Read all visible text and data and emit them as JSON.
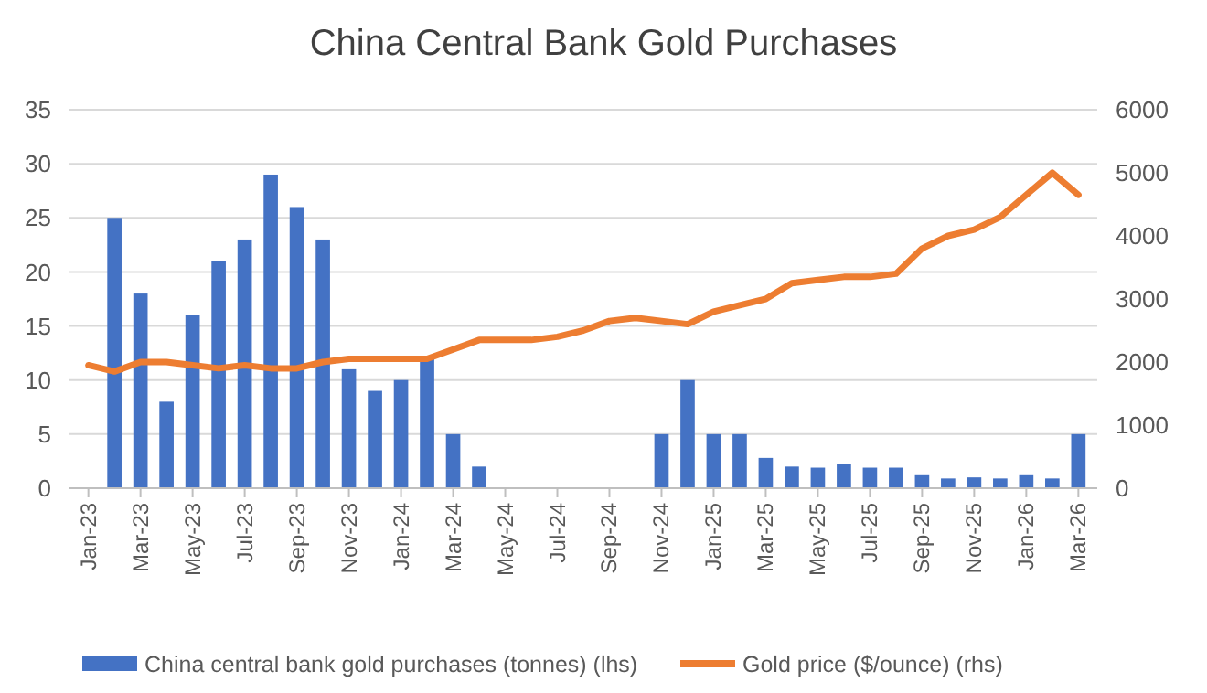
{
  "chart_data": {
    "type": "bar",
    "title": "China Central Bank Gold Purchases",
    "categories": [
      "Jan-23",
      null,
      "Mar-23",
      null,
      "May-23",
      null,
      "Jul-23",
      null,
      "Sep-23",
      null,
      "Nov-23",
      null,
      "Jan-24",
      null,
      "Mar-24",
      null,
      "May-24",
      null,
      "Jul-24",
      null,
      "Sep-24",
      null,
      "Nov-24",
      null,
      "Jan-25",
      null,
      "Mar-25",
      null,
      "May-25",
      null,
      "Jul-25",
      null,
      "Sep-25",
      null,
      "Nov-25",
      null,
      "Jan-26",
      null,
      "Mar-26"
    ],
    "series": [
      {
        "name": "China central bank gold purchases (tonnes) (lhs)",
        "color": "#4472c4",
        "values": [
          0,
          25,
          18,
          8,
          16,
          21,
          23,
          29,
          26,
          23,
          11,
          9,
          10,
          12,
          5,
          2,
          0,
          0,
          0,
          0,
          0,
          0,
          5,
          10,
          5,
          5,
          2.8,
          2,
          1.9,
          2.2,
          1.9,
          1.9,
          1.2,
          0.9,
          1,
          0.9,
          1.2,
          0.9,
          5
        ]
      },
      {
        "name": "Gold price ($/ounce) (rhs)",
        "type": "line",
        "axis": "y2",
        "color": "#ed7d31",
        "values": [
          1950,
          1850,
          2000,
          2000,
          1950,
          1900,
          1950,
          1900,
          1900,
          2000,
          2050,
          2050,
          2050,
          2050,
          2200,
          2350,
          2350,
          2350,
          2400,
          2500,
          2650,
          2700,
          2650,
          2600,
          2800,
          2900,
          3000,
          3250,
          3300,
          3350,
          3350,
          3400,
          3800,
          4000,
          4100,
          4300,
          4650,
          5000,
          4650
        ]
      }
    ],
    "ylim": [
      0,
      35
    ],
    "yticks": [
      0,
      5,
      10,
      15,
      20,
      25,
      30,
      35
    ],
    "y2lim": [
      0,
      6000
    ],
    "y2ticks": [
      0,
      1000,
      2000,
      3000,
      4000,
      5000,
      6000
    ],
    "grid": "y",
    "legend": "bottom"
  }
}
